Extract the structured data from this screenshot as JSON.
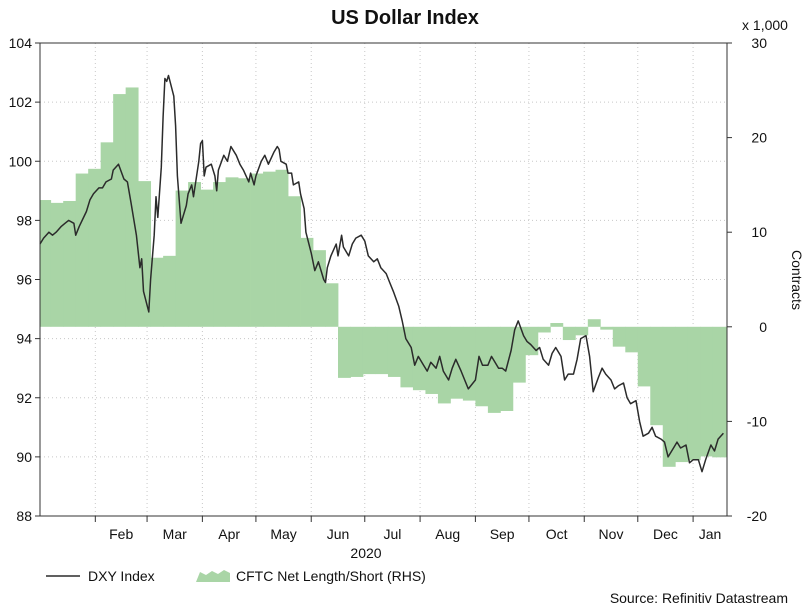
{
  "chart_data": {
    "type": "line",
    "title": "US Dollar Index",
    "source": "Source: Refinitiv Datastream",
    "xlabel": "2020",
    "x_ticks": [
      "Feb",
      "Mar",
      "Apr",
      "May",
      "Jun",
      "Jul",
      "Aug",
      "Sep",
      "Oct",
      "Nov",
      "Dec",
      "Jan"
    ],
    "y_left": {
      "min": 88,
      "max": 104,
      "ticks": [
        88,
        90,
        92,
        94,
        96,
        98,
        100,
        102,
        104
      ]
    },
    "y_right": {
      "min": -20,
      "max": 30,
      "ticks": [
        -20,
        -10,
        0,
        10,
        20,
        30
      ],
      "label": "Contracts",
      "multiplier": "x 1,000"
    },
    "grid": true,
    "legend_position": "bottom-left",
    "series": [
      {
        "name": "DXY Index",
        "axis": "left",
        "type": "line",
        "color": "#2b2b2b",
        "points": [
          [
            "2020-01-01",
            97.2
          ],
          [
            "2020-01-03",
            97.4
          ],
          [
            "2020-01-06",
            97.6
          ],
          [
            "2020-01-08",
            97.5
          ],
          [
            "2020-01-10",
            97.6
          ],
          [
            "2020-01-13",
            97.8
          ],
          [
            "2020-01-15",
            97.9
          ],
          [
            "2020-01-17",
            98.0
          ],
          [
            "2020-01-20",
            97.9
          ],
          [
            "2020-01-21",
            97.5
          ],
          [
            "2020-01-23",
            97.8
          ],
          [
            "2020-01-27",
            98.3
          ],
          [
            "2020-01-29",
            98.7
          ],
          [
            "2020-01-31",
            98.9
          ],
          [
            "2020-02-03",
            99.1
          ],
          [
            "2020-02-05",
            99.1
          ],
          [
            "2020-02-07",
            99.3
          ],
          [
            "2020-02-10",
            99.4
          ],
          [
            "2020-02-11",
            99.7
          ],
          [
            "2020-02-14",
            99.9
          ],
          [
            "2020-02-17",
            99.4
          ],
          [
            "2020-02-19",
            99.3
          ],
          [
            "2020-02-21",
            98.6
          ],
          [
            "2020-02-24",
            97.5
          ],
          [
            "2020-02-26",
            96.4
          ],
          [
            "2020-02-27",
            96.7
          ],
          [
            "2020-02-28",
            95.6
          ],
          [
            "2020-03-02",
            94.9
          ],
          [
            "2020-03-03",
            96.0
          ],
          [
            "2020-03-05",
            97.5
          ],
          [
            "2020-03-06",
            98.8
          ],
          [
            "2020-03-07",
            98.1
          ],
          [
            "2020-03-09",
            99.8
          ],
          [
            "2020-03-10",
            101.5
          ],
          [
            "2020-03-11",
            102.8
          ],
          [
            "2020-03-12",
            102.7
          ],
          [
            "2020-03-13",
            102.9
          ],
          [
            "2020-03-16",
            102.2
          ],
          [
            "2020-03-17",
            101.2
          ],
          [
            "2020-03-18",
            99.5
          ],
          [
            "2020-03-20",
            97.9
          ],
          [
            "2020-03-23",
            98.5
          ],
          [
            "2020-03-24",
            98.9
          ],
          [
            "2020-03-26",
            99.2
          ],
          [
            "2020-03-27",
            98.8
          ],
          [
            "2020-03-30",
            100.0
          ],
          [
            "2020-03-31",
            100.6
          ],
          [
            "2020-04-01",
            100.7
          ],
          [
            "2020-04-02",
            99.5
          ],
          [
            "2020-04-03",
            99.8
          ],
          [
            "2020-04-06",
            99.9
          ],
          [
            "2020-04-08",
            99.5
          ],
          [
            "2020-04-09",
            99.0
          ],
          [
            "2020-04-10",
            99.7
          ],
          [
            "2020-04-13",
            100.2
          ],
          [
            "2020-04-15",
            100.0
          ],
          [
            "2020-04-17",
            100.5
          ],
          [
            "2020-04-20",
            100.2
          ],
          [
            "2020-04-22",
            99.9
          ],
          [
            "2020-04-24",
            99.7
          ],
          [
            "2020-04-27",
            99.3
          ],
          [
            "2020-04-28",
            99.6
          ],
          [
            "2020-04-30",
            99.2
          ],
          [
            "2020-05-01",
            99.5
          ],
          [
            "2020-05-04",
            100.0
          ],
          [
            "2020-05-06",
            100.2
          ],
          [
            "2020-05-08",
            99.9
          ],
          [
            "2020-05-11",
            100.3
          ],
          [
            "2020-05-13",
            100.5
          ],
          [
            "2020-05-14",
            100.4
          ],
          [
            "2020-05-15",
            100.0
          ],
          [
            "2020-05-18",
            99.9
          ],
          [
            "2020-05-19",
            99.6
          ],
          [
            "2020-05-21",
            99.6
          ],
          [
            "2020-05-22",
            99.2
          ],
          [
            "2020-05-25",
            99.3
          ],
          [
            "2020-05-26",
            98.9
          ],
          [
            "2020-05-28",
            98.4
          ],
          [
            "2020-05-29",
            97.6
          ],
          [
            "2020-06-01",
            96.9
          ],
          [
            "2020-06-03",
            96.3
          ],
          [
            "2020-06-05",
            96.6
          ],
          [
            "2020-06-08",
            96.0
          ],
          [
            "2020-06-09",
            95.9
          ],
          [
            "2020-06-10",
            96.4
          ],
          [
            "2020-06-12",
            96.8
          ],
          [
            "2020-06-15",
            97.2
          ],
          [
            "2020-06-16",
            96.8
          ],
          [
            "2020-06-18",
            97.5
          ],
          [
            "2020-06-19",
            97.1
          ],
          [
            "2020-06-22",
            96.8
          ],
          [
            "2020-06-24",
            97.2
          ],
          [
            "2020-06-26",
            97.4
          ],
          [
            "2020-06-29",
            97.5
          ],
          [
            "2020-07-01",
            97.3
          ],
          [
            "2020-07-03",
            96.8
          ],
          [
            "2020-07-06",
            96.6
          ],
          [
            "2020-07-08",
            96.7
          ],
          [
            "2020-07-10",
            96.4
          ],
          [
            "2020-07-13",
            96.2
          ],
          [
            "2020-07-15",
            95.9
          ],
          [
            "2020-07-17",
            95.6
          ],
          [
            "2020-07-20",
            95.1
          ],
          [
            "2020-07-22",
            94.6
          ],
          [
            "2020-07-24",
            94.0
          ],
          [
            "2020-07-27",
            93.7
          ],
          [
            "2020-07-29",
            93.1
          ],
          [
            "2020-07-31",
            93.4
          ],
          [
            "2020-08-03",
            93.1
          ],
          [
            "2020-08-05",
            92.9
          ],
          [
            "2020-08-07",
            93.2
          ],
          [
            "2020-08-10",
            93.0
          ],
          [
            "2020-08-12",
            93.4
          ],
          [
            "2020-08-14",
            92.9
          ],
          [
            "2020-08-17",
            92.6
          ],
          [
            "2020-08-19",
            93.0
          ],
          [
            "2020-08-21",
            93.3
          ],
          [
            "2020-08-24",
            92.9
          ],
          [
            "2020-08-26",
            92.6
          ],
          [
            "2020-08-28",
            92.3
          ],
          [
            "2020-09-01",
            92.6
          ],
          [
            "2020-09-03",
            93.4
          ],
          [
            "2020-09-05",
            93.1
          ],
          [
            "2020-09-08",
            93.1
          ],
          [
            "2020-09-10",
            93.4
          ],
          [
            "2020-09-14",
            93.0
          ],
          [
            "2020-09-16",
            93.0
          ],
          [
            "2020-09-18",
            92.9
          ],
          [
            "2020-09-21",
            93.6
          ],
          [
            "2020-09-23",
            94.3
          ],
          [
            "2020-09-25",
            94.6
          ],
          [
            "2020-09-28",
            94.1
          ],
          [
            "2020-09-30",
            93.9
          ],
          [
            "2020-10-02",
            93.8
          ],
          [
            "2020-10-05",
            93.6
          ],
          [
            "2020-10-07",
            93.7
          ],
          [
            "2020-10-09",
            93.3
          ],
          [
            "2020-10-12",
            93.1
          ],
          [
            "2020-10-14",
            93.5
          ],
          [
            "2020-10-16",
            93.7
          ],
          [
            "2020-10-19",
            93.4
          ],
          [
            "2020-10-21",
            92.6
          ],
          [
            "2020-10-23",
            92.8
          ],
          [
            "2020-10-26",
            92.8
          ],
          [
            "2020-10-28",
            93.3
          ],
          [
            "2020-10-30",
            94.0
          ],
          [
            "2020-11-02",
            94.1
          ],
          [
            "2020-11-04",
            93.4
          ],
          [
            "2020-11-06",
            92.2
          ],
          [
            "2020-11-09",
            92.7
          ],
          [
            "2020-11-11",
            93.0
          ],
          [
            "2020-11-13",
            92.8
          ],
          [
            "2020-11-16",
            92.6
          ],
          [
            "2020-11-18",
            92.3
          ],
          [
            "2020-11-20",
            92.4
          ],
          [
            "2020-11-23",
            92.5
          ],
          [
            "2020-11-25",
            92.0
          ],
          [
            "2020-11-27",
            91.8
          ],
          [
            "2020-11-30",
            91.9
          ],
          [
            "2020-12-02",
            91.2
          ],
          [
            "2020-12-04",
            90.7
          ],
          [
            "2020-12-07",
            90.8
          ],
          [
            "2020-12-09",
            91.0
          ],
          [
            "2020-12-11",
            90.7
          ],
          [
            "2020-12-14",
            90.6
          ],
          [
            "2020-12-16",
            90.5
          ],
          [
            "2020-12-18",
            90.0
          ],
          [
            "2020-12-21",
            90.3
          ],
          [
            "2020-12-23",
            90.5
          ],
          [
            "2020-12-25",
            90.3
          ],
          [
            "2020-12-28",
            90.4
          ],
          [
            "2020-12-30",
            89.8
          ],
          [
            "2021-01-01",
            89.9
          ],
          [
            "2021-01-04",
            89.9
          ],
          [
            "2021-01-06",
            89.5
          ],
          [
            "2021-01-08",
            89.9
          ],
          [
            "2021-01-11",
            90.4
          ],
          [
            "2021-01-13",
            90.2
          ],
          [
            "2021-01-15",
            90.6
          ],
          [
            "2021-01-18",
            90.8
          ]
        ]
      },
      {
        "name": "CFTC Net Length/Short (RHS)",
        "axis": "right",
        "type": "area",
        "color": "#a9d5a6",
        "weekly_steps": [
          [
            "2020-01-01",
            13.4
          ],
          [
            "2020-01-07",
            13.1
          ],
          [
            "2020-01-14",
            13.3
          ],
          [
            "2020-01-21",
            16.2
          ],
          [
            "2020-01-28",
            16.7
          ],
          [
            "2020-02-04",
            19.5
          ],
          [
            "2020-02-11",
            24.6
          ],
          [
            "2020-02-18",
            25.3
          ],
          [
            "2020-02-25",
            15.4
          ],
          [
            "2020-03-03",
            7.3
          ],
          [
            "2020-03-10",
            7.5
          ],
          [
            "2020-03-17",
            14.4
          ],
          [
            "2020-03-24",
            15.3
          ],
          [
            "2020-03-31",
            14.5
          ],
          [
            "2020-04-07",
            15.3
          ],
          [
            "2020-04-14",
            15.8
          ],
          [
            "2020-04-21",
            15.7
          ],
          [
            "2020-04-28",
            16.2
          ],
          [
            "2020-05-05",
            16.4
          ],
          [
            "2020-05-12",
            16.6
          ],
          [
            "2020-05-19",
            13.8
          ],
          [
            "2020-05-26",
            9.4
          ],
          [
            "2020-06-02",
            8.1
          ],
          [
            "2020-06-09",
            4.6
          ],
          [
            "2020-06-16",
            -5.4
          ],
          [
            "2020-06-23",
            -5.3
          ],
          [
            "2020-06-30",
            -5.0
          ],
          [
            "2020-07-07",
            -5.0
          ],
          [
            "2020-07-14",
            -5.3
          ],
          [
            "2020-07-21",
            -6.4
          ],
          [
            "2020-07-28",
            -6.7
          ],
          [
            "2020-08-04",
            -7.1
          ],
          [
            "2020-08-11",
            -8.1
          ],
          [
            "2020-08-18",
            -7.6
          ],
          [
            "2020-08-25",
            -7.8
          ],
          [
            "2020-09-01",
            -8.4
          ],
          [
            "2020-09-08",
            -9.1
          ],
          [
            "2020-09-15",
            -8.9
          ],
          [
            "2020-09-22",
            -5.9
          ],
          [
            "2020-09-29",
            -3.0
          ],
          [
            "2020-10-06",
            -0.6
          ],
          [
            "2020-10-13",
            0.4
          ],
          [
            "2020-10-20",
            -1.4
          ],
          [
            "2020-10-27",
            -0.9
          ],
          [
            "2020-11-03",
            0.8
          ],
          [
            "2020-11-10",
            -0.3
          ],
          [
            "2020-11-17",
            -2.1
          ],
          [
            "2020-11-24",
            -2.7
          ],
          [
            "2020-12-01",
            -6.3
          ],
          [
            "2020-12-08",
            -10.4
          ],
          [
            "2020-12-15",
            -14.8
          ],
          [
            "2020-12-22",
            -14.3
          ],
          [
            "2020-12-29",
            -14.1
          ],
          [
            "2021-01-05",
            -13.7
          ],
          [
            "2021-01-12",
            -13.8
          ],
          [
            "2021-01-19",
            -13.8
          ]
        ]
      }
    ]
  }
}
